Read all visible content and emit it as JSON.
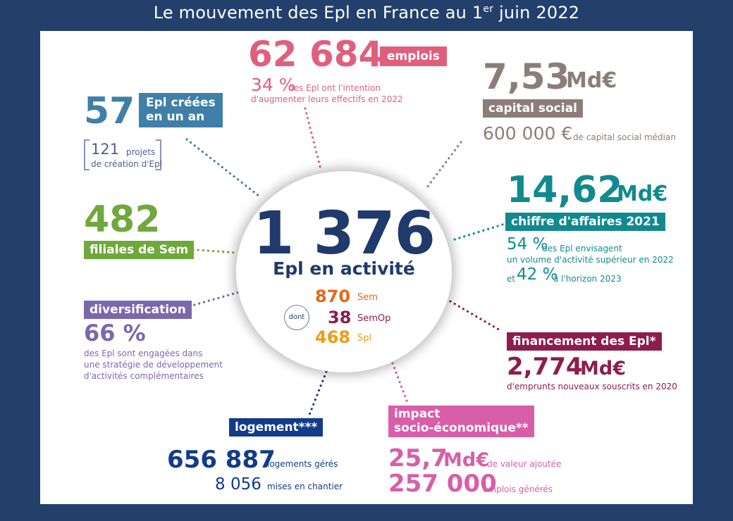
{
  "header": {
    "title_main": "Le mouvement des Epl en France au 1",
    "title_sup": "er",
    "title_end": " juin 2022"
  },
  "center": {
    "number": "1 376",
    "label": "Epl en activité",
    "dont": "dont",
    "sem_value": "870",
    "sem_label": "Sem",
    "semop_value": "38",
    "semop_label": "SemOp",
    "spl_value": "468",
    "spl_label": "Spl"
  },
  "emplois": {
    "number": "62 684",
    "tag": "emplois",
    "pct": "34 %",
    "line1": "des Epl ont l'intention",
    "line2": "d'augmenter leurs effectifs en 2022"
  },
  "capital": {
    "number": "7,53",
    "unit": "Md€",
    "tag": "capital social",
    "median_value": "600 000 €",
    "median_label": "de capital social médian"
  },
  "creees": {
    "number": "57",
    "tag_line1": "Epl créées",
    "tag_line2": "en un an",
    "projets_value": "121",
    "projets_line1": "projets",
    "projets_line2": "de création d'Epl"
  },
  "ca": {
    "number": "14,62",
    "unit": "Md€",
    "tag": "chiffre d'affaires 2021",
    "pct1": "54 %",
    "line1": "des Epl envisagent",
    "line2": "un volume d'activité supérieur en 2022",
    "and": "et",
    "pct2": "42 %",
    "line3": "à l'horizon 2023"
  },
  "filiales": {
    "number": "482",
    "tag": "filiales de Sem"
  },
  "diversification": {
    "tag": "diversification",
    "pct": "66 %",
    "line1": "des Epl sont engagées dans",
    "line2": "une stratégie de développement",
    "line3": "d'activités complémentaires"
  },
  "financement": {
    "tag": "financement des Epl*",
    "number": "2,774",
    "unit": "Md€",
    "line1": "d'emprunts nouveaux souscrits en 2020"
  },
  "logement": {
    "tag": "logement***",
    "geres_value": "656 887",
    "geres_label": "logements gérés",
    "chantier_value": "8 056",
    "chantier_label": "mises en chantier"
  },
  "impact": {
    "tag_line1": "impact",
    "tag_line2": "socio-économique**",
    "va_value": "25,7",
    "va_unit": "Md€",
    "va_label": "de valeur ajoutée",
    "emp_value": "257 000",
    "emp_label": "emplois générés"
  },
  "colors": {
    "navy": "#1f3a6b",
    "pink": "#e05f7c",
    "taupe": "#8c7d78",
    "blue": "#3f7fa8",
    "teal": "#118a8f",
    "green": "#6fa83b",
    "purple": "#7a68ad",
    "plum": "#8d1c4f",
    "darkblue": "#123b8a",
    "rose": "#d95ea8",
    "orange": "#e06a1b",
    "amber": "#ef9c1a"
  }
}
